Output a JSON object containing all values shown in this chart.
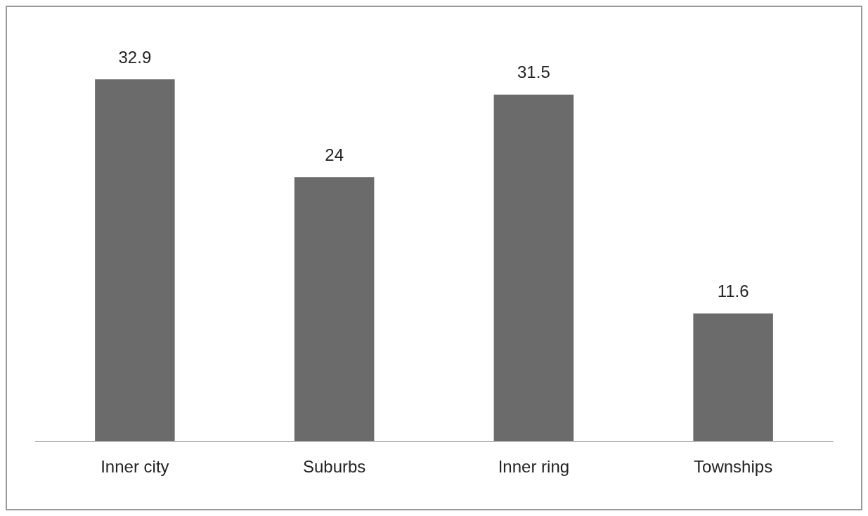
{
  "chart_data": {
    "type": "bar",
    "categories": [
      "Inner city",
      "Suburbs",
      "Inner ring",
      "Townships"
    ],
    "values": [
      32.9,
      24,
      31.5,
      11.6
    ],
    "color": "#6b6b6b",
    "data_labels": true,
    "grid": false,
    "legend": false
  }
}
